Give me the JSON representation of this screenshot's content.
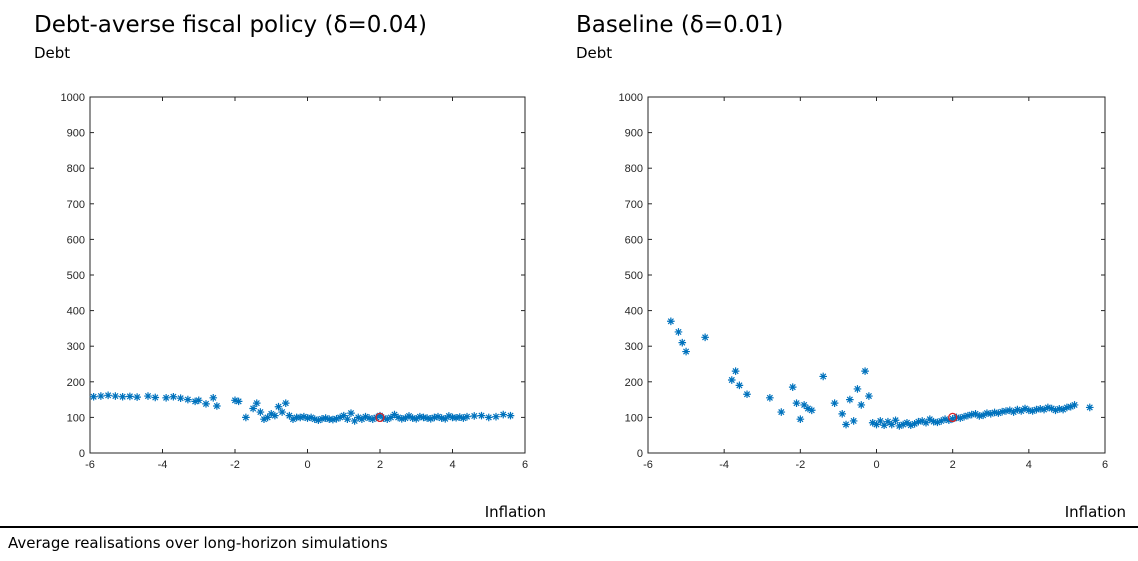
{
  "footer": "Average realisations over long-horizon simulations",
  "colors": {
    "series": "#0072BD",
    "target": "#D62728",
    "axis": "#262626"
  },
  "chart_data": [
    {
      "type": "scatter",
      "title": "Debt-averse fiscal policy (δ=0.04)",
      "ylabel": "Debt",
      "xlabel": "Inflation",
      "xlim": [
        -6,
        6
      ],
      "ylim": [
        0,
        1000
      ],
      "xticks": [
        "-6",
        "-4",
        "-2",
        "0",
        "2",
        "4",
        "6"
      ],
      "yticks": [
        "0",
        "100",
        "200",
        "300",
        "400",
        "500",
        "600",
        "700",
        "800",
        "900",
        "1000"
      ],
      "grid": false,
      "series": [
        {
          "marker": "asterisk",
          "x": [
            -5.9,
            -5.7,
            -5.5,
            -5.3,
            -5.1,
            -4.9,
            -4.7,
            -4.4,
            -4.2,
            -3.9,
            -3.7,
            -3.5,
            -3.3,
            -3.1,
            -3.0,
            -2.8,
            -2.6,
            -2.5,
            -2.0,
            -1.9,
            -1.7,
            -1.5,
            -1.4,
            -1.3,
            -1.2,
            -1.1,
            -1.0,
            -0.9,
            -0.8,
            -0.7,
            -0.6,
            -0.5,
            -0.4,
            -0.3,
            -0.2,
            -0.1,
            0.0,
            0.1,
            0.2,
            0.3,
            0.4,
            0.5,
            0.6,
            0.7,
            0.8,
            0.9,
            1.0,
            1.1,
            1.2,
            1.3,
            1.4,
            1.5,
            1.6,
            1.7,
            1.8,
            1.9,
            2.0,
            2.1,
            2.2,
            2.3,
            2.4,
            2.5,
            2.6,
            2.7,
            2.8,
            2.9,
            3.0,
            3.1,
            3.2,
            3.3,
            3.4,
            3.5,
            3.6,
            3.7,
            3.8,
            3.9,
            4.0,
            4.1,
            4.2,
            4.3,
            4.4,
            4.6,
            4.8,
            5.0,
            5.2,
            5.4,
            5.6
          ],
          "y": [
            158,
            160,
            162,
            160,
            158,
            159,
            157,
            160,
            156,
            155,
            158,
            154,
            150,
            145,
            148,
            138,
            155,
            132,
            148,
            145,
            100,
            125,
            140,
            115,
            95,
            100,
            110,
            105,
            130,
            115,
            140,
            105,
            95,
            100,
            100,
            102,
            98,
            100,
            95,
            92,
            96,
            98,
            95,
            94,
            96,
            100,
            105,
            95,
            112,
            90,
            100,
            95,
            102,
            98,
            95,
            100,
            105,
            98,
            95,
            100,
            108,
            100,
            96,
            98,
            104,
            98,
            96,
            102,
            100,
            98,
            96,
            100,
            102,
            98,
            96,
            104,
            100,
            99,
            101,
            98,
            102,
            104,
            105,
            100,
            102,
            108,
            105
          ]
        }
      ],
      "target": {
        "x": 2,
        "y": 100
      }
    },
    {
      "type": "scatter",
      "title": "Baseline (δ=0.01)",
      "ylabel": "Debt",
      "xlabel": "Inflation",
      "xlim": [
        -6,
        6
      ],
      "ylim": [
        0,
        1000
      ],
      "xticks": [
        "-6",
        "-4",
        "-2",
        "0",
        "2",
        "4",
        "6"
      ],
      "yticks": [
        "0",
        "100",
        "200",
        "300",
        "400",
        "500",
        "600",
        "700",
        "800",
        "900",
        "1000"
      ],
      "grid": false,
      "series": [
        {
          "marker": "asterisk",
          "x": [
            -5.4,
            -5.2,
            -5.1,
            -5.0,
            -4.5,
            -3.8,
            -3.7,
            -3.6,
            -3.4,
            -2.8,
            -2.5,
            -2.2,
            -2.1,
            -2.0,
            -1.9,
            -1.8,
            -1.7,
            -1.4,
            -1.1,
            -0.9,
            -0.8,
            -0.7,
            -0.6,
            -0.5,
            -0.4,
            -0.3,
            -0.2,
            -0.1,
            0.0,
            0.1,
            0.2,
            0.3,
            0.4,
            0.5,
            0.6,
            0.7,
            0.8,
            0.9,
            1.0,
            1.1,
            1.2,
            1.3,
            1.4,
            1.5,
            1.6,
            1.7,
            1.8,
            1.9,
            2.0,
            2.1,
            2.2,
            2.3,
            2.4,
            2.5,
            2.6,
            2.7,
            2.8,
            2.9,
            3.0,
            3.1,
            3.2,
            3.3,
            3.4,
            3.5,
            3.6,
            3.7,
            3.8,
            3.9,
            4.0,
            4.1,
            4.2,
            4.3,
            4.4,
            4.5,
            4.6,
            4.7,
            4.8,
            4.9,
            5.0,
            5.1,
            5.2,
            5.6
          ],
          "y": [
            370,
            340,
            310,
            285,
            325,
            205,
            230,
            190,
            165,
            155,
            115,
            185,
            140,
            95,
            135,
            125,
            120,
            215,
            140,
            110,
            80,
            150,
            90,
            180,
            135,
            230,
            160,
            85,
            80,
            90,
            78,
            88,
            80,
            92,
            76,
            80,
            85,
            78,
            82,
            88,
            90,
            85,
            95,
            88,
            86,
            90,
            95,
            92,
            96,
            100,
            98,
            102,
            105,
            108,
            110,
            104,
            106,
            112,
            110,
            114,
            112,
            116,
            118,
            120,
            115,
            122,
            118,
            125,
            120,
            118,
            122,
            124,
            122,
            128,
            125,
            120,
            124,
            122,
            128,
            130,
            135,
            128
          ]
        }
      ],
      "target": {
        "x": 2,
        "y": 100
      }
    }
  ]
}
